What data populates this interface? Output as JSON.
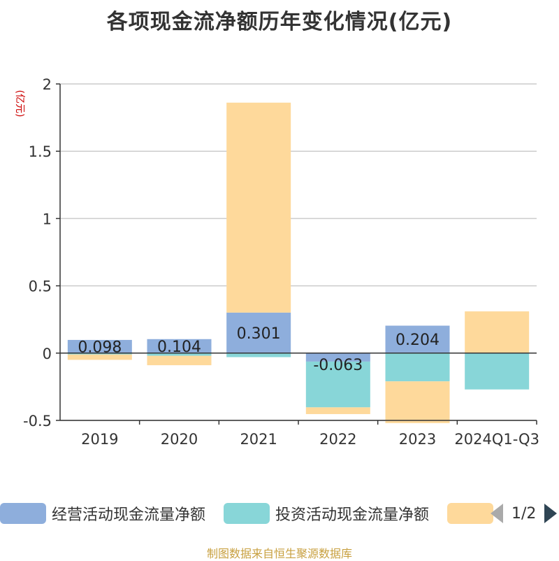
{
  "title": "各项现金流净额历年变化情况(亿元)",
  "footer": "制图数据来自恒生聚源数据库",
  "legend": {
    "page": "1/2",
    "items": [
      {
        "label": "经营活动现金流量净额",
        "color": "#8eaedc"
      },
      {
        "label": "投资活动现金流量净额",
        "color": "#88d6d8"
      },
      {
        "label": "",
        "color": "#fed99b"
      }
    ]
  },
  "chart_data": {
    "type": "bar",
    "stacked": true,
    "ylabel": "(亿元)",
    "ylim": [
      -0.5,
      2
    ],
    "yticks": [
      -0.5,
      0,
      0.5,
      1,
      1.5,
      2
    ],
    "grid": true,
    "legend_position": "bottom",
    "categories": [
      "2019",
      "2020",
      "2021",
      "2022",
      "2023",
      "2024Q1-Q3"
    ],
    "series": [
      {
        "name": "经营活动现金流量净额",
        "color": "#8eaedc",
        "values": [
          0.098,
          0.104,
          0.301,
          -0.063,
          0.204,
          0
        ],
        "labels": [
          "0.098",
          "0.104",
          "0.301",
          "-0.063",
          "0.204",
          ""
        ]
      },
      {
        "name": "投资活动现金流量净额",
        "color": "#88d6d8",
        "values": [
          -0.01,
          -0.02,
          -0.03,
          -0.34,
          -0.21,
          -0.27
        ]
      },
      {
        "color": "#fed99b",
        "values": [
          -0.04,
          -0.07,
          1.56,
          -0.05,
          -0.31,
          0.31
        ]
      }
    ]
  }
}
